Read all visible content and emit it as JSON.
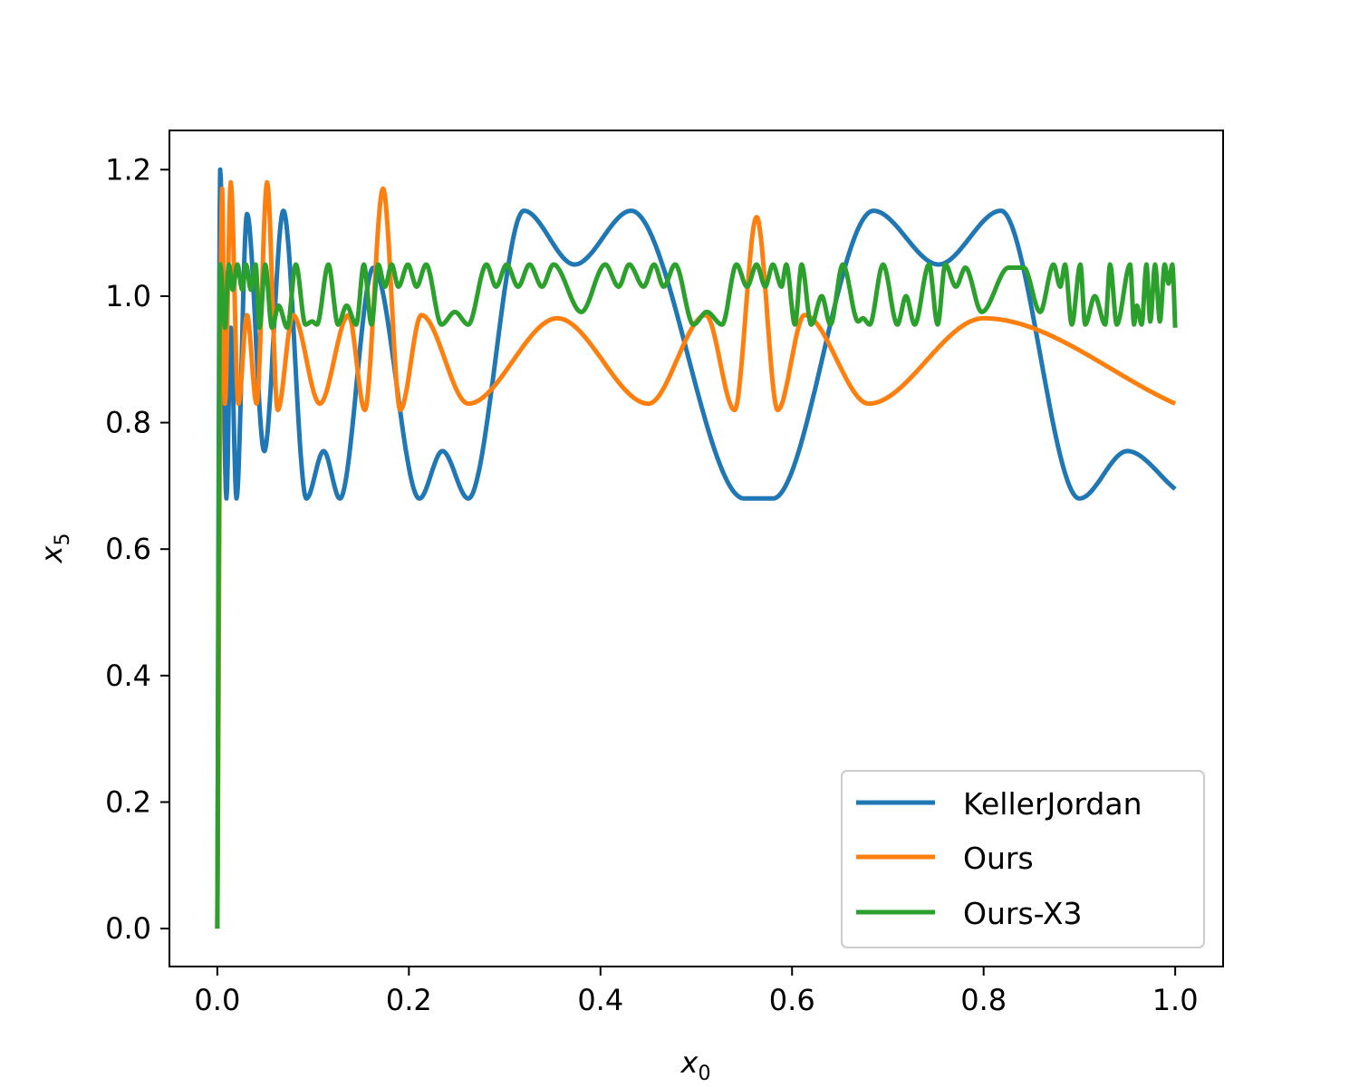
{
  "chart_data": {
    "type": "line",
    "title": "",
    "xlabel": "x",
    "xlabel_sub": "0",
    "ylabel": "x",
    "ylabel_sub": "5",
    "xlim": [
      -0.05,
      1.05
    ],
    "ylim": [
      -0.06,
      1.262
    ],
    "xticks": [
      "0.0",
      "0.2",
      "0.4",
      "0.6",
      "0.8",
      "1.0"
    ],
    "xtick_values": [
      0,
      0.2,
      0.4,
      0.6,
      0.8,
      1.0
    ],
    "yticks": [
      "0.0",
      "0.2",
      "0.4",
      "0.6",
      "0.8",
      "1.0",
      "1.2"
    ],
    "ytick_values": [
      0,
      0.2,
      0.4,
      0.6,
      0.8,
      1.0,
      1.2
    ],
    "grid": false,
    "legend_position": "lower-right",
    "series": [
      {
        "name": "KellerJordan",
        "color": "#1f77b4",
        "x": [
          0,
          0.003,
          0.0095,
          0.014,
          0.02,
          0.031,
          0.049,
          0.069,
          0.093,
          0.111,
          0.128,
          0.163,
          0.211,
          0.235,
          0.262,
          0.32,
          0.373,
          0.432,
          0.55,
          0.58,
          0.685,
          0.753,
          0.818,
          0.9,
          0.95,
          1.0
        ],
        "y": [
          0,
          1.2,
          0.68,
          0.95,
          0.68,
          1.13,
          0.755,
          1.135,
          0.68,
          0.755,
          0.68,
          1.045,
          0.68,
          0.755,
          0.68,
          1.135,
          1.05,
          1.135,
          0.68,
          0.68,
          1.135,
          1.05,
          1.135,
          0.68,
          0.755,
          0.695
        ]
      },
      {
        "name": "Ours",
        "color": "#ff7f0e",
        "x": [
          0,
          0.005,
          0.008,
          0.014,
          0.022,
          0.031,
          0.041,
          0.052,
          0.063,
          0.079,
          0.107,
          0.137,
          0.154,
          0.173,
          0.191,
          0.213,
          0.262,
          0.355,
          0.45,
          0.51,
          0.54,
          0.563,
          0.585,
          0.613,
          0.68,
          0.8,
          1.0
        ],
        "y": [
          0,
          1.17,
          0.83,
          1.18,
          0.83,
          0.97,
          0.83,
          1.18,
          0.82,
          0.97,
          0.83,
          0.97,
          0.82,
          1.17,
          0.82,
          0.97,
          0.83,
          0.965,
          0.83,
          0.97,
          0.82,
          1.125,
          0.82,
          0.97,
          0.83,
          0.965,
          0.83
        ]
      },
      {
        "name": "Ours-X3",
        "color": "#2ca02c",
        "x": [
          0,
          0.003,
          0.008,
          0.012,
          0.016,
          0.021,
          0.026,
          0.03,
          0.035,
          0.04,
          0.044,
          0.05,
          0.057,
          0.064,
          0.073,
          0.082,
          0.092,
          0.099,
          0.104,
          0.116,
          0.126,
          0.135,
          0.145,
          0.153,
          0.161,
          0.168,
          0.175,
          0.182,
          0.189,
          0.199,
          0.208,
          0.218,
          0.234,
          0.248,
          0.262,
          0.281,
          0.291,
          0.302,
          0.314,
          0.326,
          0.339,
          0.351,
          0.38,
          0.405,
          0.419,
          0.43,
          0.445,
          0.456,
          0.466,
          0.478,
          0.497,
          0.511,
          0.527,
          0.542,
          0.553,
          0.563,
          0.572,
          0.58,
          0.589,
          0.594,
          0.603,
          0.61,
          0.62,
          0.631,
          0.64,
          0.653,
          0.669,
          0.674,
          0.681,
          0.695,
          0.71,
          0.719,
          0.728,
          0.743,
          0.752,
          0.76,
          0.771,
          0.781,
          0.798,
          0.826,
          0.842,
          0.859,
          0.873,
          0.88,
          0.885,
          0.892,
          0.901,
          0.906,
          0.916,
          0.927,
          0.932,
          0.939,
          0.953,
          0.957,
          0.96,
          0.965,
          0.97,
          0.974,
          0.979,
          0.984,
          0.989,
          0.993,
          0.997,
          1.0
        ],
        "y": [
          0,
          1.05,
          0.95,
          1.05,
          1.01,
          1.05,
          1.01,
          1.05,
          1.01,
          1.05,
          0.95,
          1.05,
          0.95,
          0.985,
          0.95,
          1.05,
          0.955,
          0.96,
          0.955,
          1.05,
          0.955,
          0.985,
          0.955,
          1.05,
          0.955,
          1.05,
          1.015,
          1.05,
          1.015,
          1.05,
          1.015,
          1.05,
          0.955,
          0.975,
          0.955,
          1.05,
          1.015,
          1.05,
          1.015,
          1.05,
          1.015,
          1.05,
          0.975,
          1.05,
          1.015,
          1.05,
          1.015,
          1.05,
          1.015,
          1.05,
          0.955,
          0.975,
          0.955,
          1.05,
          1.015,
          1.05,
          1.015,
          1.05,
          1.015,
          1.05,
          0.955,
          1.05,
          0.955,
          1.0,
          0.955,
          1.05,
          0.96,
          0.965,
          0.955,
          1.05,
          0.955,
          1.0,
          0.955,
          1.05,
          0.955,
          1.05,
          1.015,
          1.045,
          0.975,
          1.045,
          1.045,
          0.975,
          1.05,
          1.015,
          1.05,
          0.955,
          1.05,
          0.955,
          1.0,
          0.955,
          1.05,
          0.955,
          1.05,
          0.955,
          0.985,
          0.955,
          1.05,
          0.96,
          1.05,
          0.96,
          1.05,
          1.02,
          1.05,
          0.95
        ]
      }
    ]
  }
}
